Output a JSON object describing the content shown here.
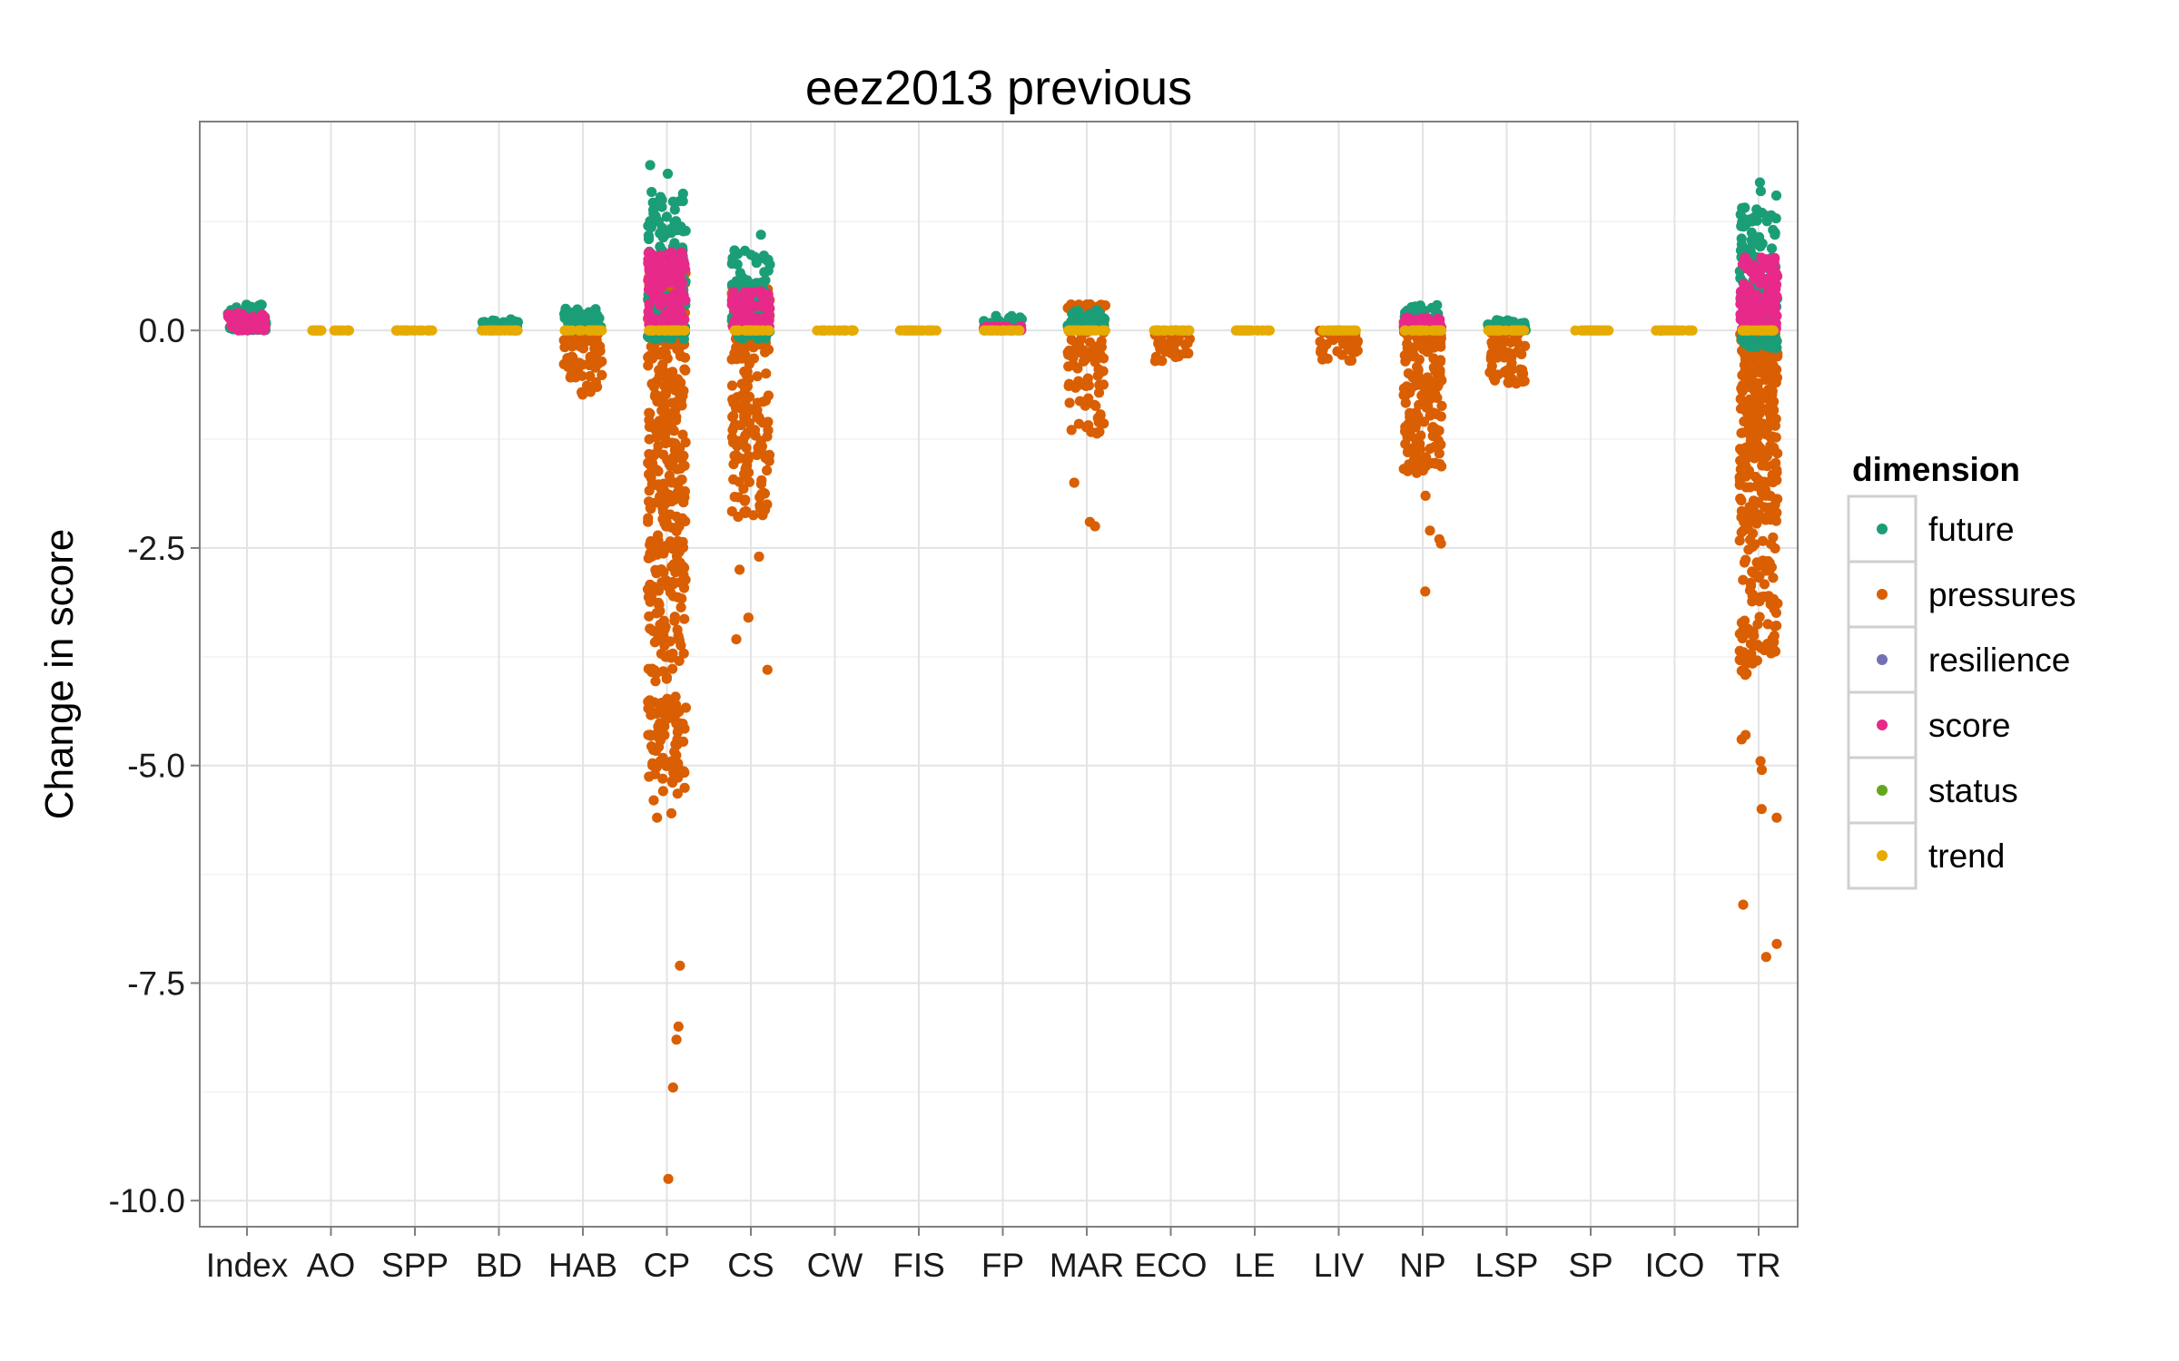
{
  "chart_data": {
    "type": "scatter",
    "title": "eez2013 previous",
    "xlabel": "",
    "ylabel": "Change in score",
    "categories": [
      "Index",
      "AO",
      "SPP",
      "BD",
      "HAB",
      "CP",
      "CS",
      "CW",
      "FIS",
      "FP",
      "MAR",
      "ECO",
      "LE",
      "LIV",
      "NP",
      "LSP",
      "SP",
      "ICO",
      "TR"
    ],
    "ylim": [
      -10.3,
      2.4
    ],
    "yticks": [
      0.0,
      -2.5,
      -5.0,
      -7.5,
      -10.0
    ],
    "ytick_labels": [
      "0.0",
      "-2.5",
      "-5.0",
      "-7.5",
      "-10.0"
    ],
    "grid": true,
    "jitter": true,
    "legend": {
      "title": "dimension",
      "placement": "right",
      "entries": [
        "future",
        "pressures",
        "resilience",
        "score",
        "status",
        "trend"
      ]
    },
    "colors": {
      "future": "#1b9e77",
      "pressures": "#d95f02",
      "resilience": "#7570b3",
      "score": "#e7298a",
      "status": "#66a61e",
      "trend": "#e6ab02"
    },
    "series": [
      {
        "name": "pressures",
        "summary": [
          {
            "category": "HAB",
            "min": -1.35,
            "max": 0.0
          },
          {
            "category": "CP",
            "min": -9.75,
            "max": 0.7
          },
          {
            "category": "CS",
            "min": -3.9,
            "max": 0.5
          },
          {
            "category": "MAR",
            "min": -2.25,
            "max": 0.3
          },
          {
            "category": "ECO",
            "min": -0.65,
            "max": 0.0
          },
          {
            "category": "LIV",
            "min": -0.65,
            "max": 0.0
          },
          {
            "category": "NP",
            "min": -3.0,
            "max": 0.0
          },
          {
            "category": "LSP",
            "min": -1.15,
            "max": 0.0
          },
          {
            "category": "TR",
            "min": -7.2,
            "max": 0.0
          }
        ],
        "points": [
          {
            "category": "CP",
            "y": -9.75
          },
          {
            "category": "CP",
            "y": -8.7
          },
          {
            "category": "CP",
            "y": -8.15
          },
          {
            "category": "CP",
            "y": -8.0
          },
          {
            "category": "CP",
            "y": -7.3
          },
          {
            "category": "CP",
            "y": -5.6
          },
          {
            "category": "CP",
            "y": -5.55
          },
          {
            "category": "CP",
            "y": -5.4
          },
          {
            "category": "CP",
            "y": -5.1
          },
          {
            "category": "CP",
            "y": -4.95
          },
          {
            "category": "CP",
            "y": -4.7
          },
          {
            "category": "CP",
            "y": -4.35
          },
          {
            "category": "CS",
            "y": -3.9
          },
          {
            "category": "CS",
            "y": -3.55
          },
          {
            "category": "CS",
            "y": -3.3
          },
          {
            "category": "CS",
            "y": -2.75
          },
          {
            "category": "CS",
            "y": -2.6
          },
          {
            "category": "MAR",
            "y": -2.25
          },
          {
            "category": "MAR",
            "y": -2.2
          },
          {
            "category": "MAR",
            "y": -1.75
          },
          {
            "category": "NP",
            "y": -3.0
          },
          {
            "category": "NP",
            "y": -2.45
          },
          {
            "category": "NP",
            "y": -2.4
          },
          {
            "category": "NP",
            "y": -2.3
          },
          {
            "category": "NP",
            "y": -1.9
          },
          {
            "category": "NP",
            "y": -1.4
          },
          {
            "category": "TR",
            "y": -7.2
          },
          {
            "category": "TR",
            "y": -7.05
          },
          {
            "category": "TR",
            "y": -6.6
          },
          {
            "category": "TR",
            "y": -5.6
          },
          {
            "category": "TR",
            "y": -5.5
          },
          {
            "category": "TR",
            "y": -5.05
          },
          {
            "category": "TR",
            "y": -4.95
          },
          {
            "category": "TR",
            "y": -4.7
          },
          {
            "category": "TR",
            "y": -4.65
          }
        ]
      },
      {
        "name": "future",
        "summary": [
          {
            "category": "Index",
            "min": 0.0,
            "max": 0.35
          },
          {
            "category": "BD",
            "min": 0.0,
            "max": 0.15
          },
          {
            "category": "HAB",
            "min": 0.0,
            "max": 0.3
          },
          {
            "category": "CP",
            "min": -0.1,
            "max": 1.9
          },
          {
            "category": "CS",
            "min": -0.1,
            "max": 1.1
          },
          {
            "category": "FP",
            "min": 0.0,
            "max": 0.2
          },
          {
            "category": "MAR",
            "min": 0.0,
            "max": 0.3
          },
          {
            "category": "NP",
            "min": 0.0,
            "max": 0.35
          },
          {
            "category": "LSP",
            "min": 0.0,
            "max": 0.15
          },
          {
            "category": "TR",
            "min": -0.2,
            "max": 1.7
          }
        ],
        "points": [
          {
            "category": "CP",
            "y": 1.9
          },
          {
            "category": "CP",
            "y": 1.8
          },
          {
            "category": "CP",
            "y": 1.5
          },
          {
            "category": "CS",
            "y": 1.1
          },
          {
            "category": "TR",
            "y": 1.7
          },
          {
            "category": "TR",
            "y": 1.6
          },
          {
            "category": "TR",
            "y": 1.55
          },
          {
            "category": "TR",
            "y": 1.1
          }
        ]
      },
      {
        "name": "score",
        "summary": [
          {
            "category": "Index",
            "min": 0.0,
            "max": 0.2
          },
          {
            "category": "CP",
            "min": 0.0,
            "max": 0.9
          },
          {
            "category": "CS",
            "min": 0.0,
            "max": 0.45
          },
          {
            "category": "FP",
            "min": 0.0,
            "max": 0.05
          },
          {
            "category": "NP",
            "min": 0.0,
            "max": 0.15
          },
          {
            "category": "TR",
            "min": 0.0,
            "max": 0.85
          }
        ]
      },
      {
        "name": "trend",
        "summary": [
          {
            "category": "AO",
            "y": 0.0
          },
          {
            "category": "SPP",
            "y": 0.0
          },
          {
            "category": "CW",
            "y": 0.0
          },
          {
            "category": "FIS",
            "y": 0.0
          },
          {
            "category": "FP",
            "y": 0.0
          },
          {
            "category": "ICO",
            "y": 0.0
          },
          {
            "category": "BD",
            "y": 0.0
          },
          {
            "category": "HAB",
            "y": 0.0
          },
          {
            "category": "CP",
            "y": 0.0
          },
          {
            "category": "CS",
            "y": 0.0
          },
          {
            "category": "MAR",
            "y": 0.0
          },
          {
            "category": "ECO",
            "y": 0.0
          },
          {
            "category": "LE",
            "y": 0.0
          },
          {
            "category": "LIV",
            "y": 0.0
          },
          {
            "category": "NP",
            "y": 0.0
          },
          {
            "category": "LSP",
            "y": 0.0
          },
          {
            "category": "SP",
            "y": 0.0
          },
          {
            "category": "TR",
            "y": 0.0
          }
        ]
      }
    ]
  }
}
